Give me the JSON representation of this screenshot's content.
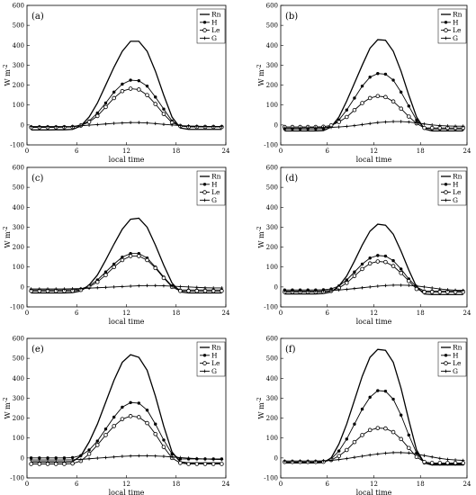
{
  "chart_data": [
    {
      "type": "line",
      "panel_label": "(a)",
      "xlabel": "local time",
      "ylabel": "W m",
      "ylabel_sup": "-2",
      "xlim": [
        0,
        24
      ],
      "ylim": [
        -100,
        600
      ],
      "xticks": [
        0,
        6,
        12,
        18,
        24
      ],
      "yticks": [
        -100,
        0,
        100,
        200,
        300,
        400,
        500,
        600
      ],
      "legend": "top-right",
      "x": [
        0.5,
        1.5,
        2.5,
        3.5,
        4.5,
        5.5,
        6.5,
        7.5,
        8.5,
        9.5,
        10.5,
        11.5,
        12.5,
        13.5,
        14.5,
        15.5,
        16.5,
        17.5,
        18.5,
        19.5,
        20.5,
        21.5,
        22.5,
        23.5
      ],
      "series": [
        {
          "name": "Rn",
          "marker": "none",
          "values": [
            -25,
            -25,
            -25,
            -24,
            -24,
            -22,
            -5,
            40,
            110,
            200,
            290,
            370,
            420,
            420,
            370,
            270,
            150,
            40,
            -15,
            -22,
            -22,
            -22,
            -22,
            -22
          ]
        },
        {
          "name": "H",
          "marker": "filled",
          "values": [
            -10,
            -10,
            -10,
            -10,
            -10,
            -9,
            0,
            20,
            60,
            110,
            165,
            205,
            225,
            222,
            195,
            140,
            80,
            20,
            -5,
            -8,
            -8,
            -8,
            -8,
            -8
          ]
        },
        {
          "name": "Le",
          "marker": "open",
          "values": [
            -12,
            -12,
            -12,
            -12,
            -11,
            -10,
            -3,
            15,
            45,
            90,
            135,
            170,
            182,
            178,
            150,
            105,
            55,
            12,
            -5,
            -10,
            -10,
            -10,
            -10,
            -10
          ]
        },
        {
          "name": "G",
          "marker": "plus",
          "values": [
            -8,
            -8,
            -8,
            -8,
            -8,
            -7,
            -4,
            -1,
            2,
            5,
            8,
            10,
            12,
            12,
            10,
            7,
            3,
            0,
            -3,
            -5,
            -6,
            -7,
            -7,
            -7
          ]
        }
      ]
    },
    {
      "type": "line",
      "panel_label": "(b)",
      "xlabel": "local time",
      "ylabel": "W m",
      "ylabel_sup": "-2",
      "xlim": [
        0,
        24
      ],
      "ylim": [
        -100,
        600
      ],
      "xticks": [
        0,
        6,
        12,
        18,
        24
      ],
      "yticks": [
        -100,
        0,
        100,
        200,
        300,
        400,
        500,
        600
      ],
      "legend": "top-right",
      "x": [
        0.5,
        1.5,
        2.5,
        3.5,
        4.5,
        5.5,
        6.5,
        7.5,
        8.5,
        9.5,
        10.5,
        11.5,
        12.5,
        13.5,
        14.5,
        15.5,
        16.5,
        17.5,
        18.5,
        19.5,
        20.5,
        21.5,
        22.5,
        23.5
      ],
      "series": [
        {
          "name": "Rn",
          "marker": "none",
          "values": [
            -30,
            -30,
            -30,
            -30,
            -30,
            -28,
            -10,
            40,
            120,
            210,
            300,
            385,
            428,
            425,
            370,
            270,
            150,
            40,
            -20,
            -30,
            -30,
            -30,
            -30,
            -30
          ]
        },
        {
          "name": "H",
          "marker": "filled",
          "values": [
            -20,
            -20,
            -20,
            -20,
            -20,
            -18,
            -5,
            25,
            75,
            135,
            195,
            240,
            258,
            255,
            225,
            165,
            95,
            25,
            -15,
            -20,
            -20,
            -20,
            -20,
            -20
          ]
        },
        {
          "name": "Le",
          "marker": "open",
          "values": [
            -10,
            -10,
            -10,
            -10,
            -10,
            -9,
            -2,
            15,
            40,
            75,
            110,
            135,
            145,
            140,
            118,
            82,
            42,
            8,
            -15,
            -15,
            -15,
            -15,
            -15,
            -15
          ]
        },
        {
          "name": "G",
          "marker": "plus",
          "values": [
            -15,
            -15,
            -15,
            -14,
            -14,
            -13,
            -12,
            -10,
            -7,
            -3,
            2,
            7,
            12,
            15,
            17,
            17,
            15,
            10,
            5,
            0,
            -3,
            -5,
            -6,
            -6
          ]
        }
      ]
    },
    {
      "type": "line",
      "panel_label": "(c)",
      "xlabel": "local time",
      "ylabel": "W m",
      "ylabel_sup": "-2",
      "xlim": [
        0,
        24
      ],
      "ylim": [
        -100,
        600
      ],
      "xticks": [
        0,
        6,
        12,
        18,
        24
      ],
      "yticks": [
        -100,
        0,
        100,
        200,
        300,
        400,
        500,
        600
      ],
      "legend": "top-right",
      "x": [
        0.5,
        1.5,
        2.5,
        3.5,
        4.5,
        5.5,
        6.5,
        7.5,
        8.5,
        9.5,
        10.5,
        11.5,
        12.5,
        13.5,
        14.5,
        15.5,
        16.5,
        17.5,
        18.5,
        19.5,
        20.5,
        21.5,
        22.5,
        23.5
      ],
      "series": [
        {
          "name": "Rn",
          "marker": "none",
          "values": [
            -30,
            -30,
            -30,
            -30,
            -30,
            -28,
            -20,
            10,
            60,
            135,
            215,
            290,
            340,
            345,
            300,
            210,
            110,
            20,
            -25,
            -30,
            -30,
            -30,
            -30,
            -30
          ]
        },
        {
          "name": "H",
          "marker": "filled",
          "values": [
            -15,
            -15,
            -15,
            -15,
            -15,
            -14,
            -10,
            5,
            35,
            75,
            115,
            150,
            168,
            168,
            145,
            100,
            50,
            5,
            -15,
            -15,
            -15,
            -15,
            -15,
            -15
          ]
        },
        {
          "name": "Le",
          "marker": "open",
          "values": [
            -20,
            -20,
            -20,
            -20,
            -20,
            -19,
            -15,
            0,
            25,
            60,
            100,
            135,
            155,
            155,
            135,
            95,
            45,
            0,
            -20,
            -20,
            -20,
            -20,
            -20,
            -20
          ]
        },
        {
          "name": "G",
          "marker": "plus",
          "values": [
            -10,
            -10,
            -10,
            -10,
            -10,
            -9,
            -8,
            -6,
            -4,
            -2,
            0,
            2,
            4,
            6,
            7,
            7,
            6,
            4,
            2,
            0,
            -2,
            -4,
            -5,
            -5
          ]
        }
      ]
    },
    {
      "type": "line",
      "panel_label": "(d)",
      "xlabel": "local time",
      "ylabel": "W m",
      "ylabel_sup": "-2",
      "xlim": [
        0,
        24
      ],
      "ylim": [
        -100,
        600
      ],
      "xticks": [
        0,
        6,
        12,
        18,
        24
      ],
      "yticks": [
        -100,
        0,
        100,
        200,
        300,
        400,
        500,
        600
      ],
      "legend": "top-right",
      "x": [
        0.5,
        1.5,
        2.5,
        3.5,
        4.5,
        5.5,
        6.5,
        7.5,
        8.5,
        9.5,
        10.5,
        11.5,
        12.5,
        13.5,
        14.5,
        15.5,
        16.5,
        17.5,
        18.5,
        19.5,
        20.5,
        21.5,
        22.5,
        23.5
      ],
      "series": [
        {
          "name": "Rn",
          "marker": "none",
          "values": [
            -35,
            -35,
            -35,
            -35,
            -35,
            -33,
            -25,
            5,
            55,
            130,
            210,
            280,
            315,
            310,
            265,
            180,
            85,
            0,
            -35,
            -38,
            -38,
            -38,
            -38,
            -38
          ]
        },
        {
          "name": "H",
          "marker": "filled",
          "values": [
            -15,
            -15,
            -15,
            -15,
            -15,
            -14,
            -10,
            5,
            35,
            75,
            115,
            145,
            158,
            155,
            132,
            90,
            40,
            0,
            -20,
            -20,
            -20,
            -20,
            -20,
            -20
          ]
        },
        {
          "name": "Le",
          "marker": "open",
          "values": [
            -25,
            -25,
            -25,
            -25,
            -25,
            -24,
            -20,
            -5,
            20,
            55,
            90,
            118,
            128,
            125,
            105,
            70,
            30,
            -10,
            -25,
            -25,
            -25,
            -25,
            -25,
            -25
          ]
        },
        {
          "name": "G",
          "marker": "plus",
          "values": [
            -20,
            -20,
            -20,
            -20,
            -20,
            -19,
            -18,
            -15,
            -12,
            -8,
            -4,
            0,
            4,
            7,
            9,
            9,
            8,
            5,
            0,
            -5,
            -10,
            -14,
            -16,
            -17
          ]
        }
      ]
    },
    {
      "type": "line",
      "panel_label": "(e)",
      "xlabel": "local time",
      "ylabel": "W m",
      "ylabel_sup": "-2",
      "xlim": [
        0,
        24
      ],
      "ylim": [
        -100,
        600
      ],
      "xticks": [
        0,
        6,
        12,
        18,
        24
      ],
      "yticks": [
        -100,
        0,
        100,
        200,
        300,
        400,
        500,
        600
      ],
      "legend": "top-right",
      "x": [
        0.5,
        1.5,
        2.5,
        3.5,
        4.5,
        5.5,
        6.5,
        7.5,
        8.5,
        9.5,
        10.5,
        11.5,
        12.5,
        13.5,
        14.5,
        15.5,
        16.5,
        17.5,
        18.5,
        19.5,
        20.5,
        21.5,
        22.5,
        23.5
      ],
      "series": [
        {
          "name": "Rn",
          "marker": "none",
          "values": [
            -20,
            -20,
            -20,
            -20,
            -20,
            -18,
            10,
            80,
            170,
            280,
            390,
            480,
            518,
            505,
            440,
            310,
            160,
            30,
            -20,
            -25,
            -25,
            -25,
            -25,
            -25
          ]
        },
        {
          "name": "H",
          "marker": "filled",
          "values": [
            0,
            0,
            0,
            0,
            0,
            2,
            12,
            40,
            85,
            145,
            205,
            255,
            278,
            275,
            240,
            170,
            90,
            20,
            -5,
            -5,
            -5,
            -5,
            -5,
            -5
          ]
        },
        {
          "name": "Le",
          "marker": "open",
          "values": [
            -30,
            -30,
            -30,
            -30,
            -30,
            -28,
            -15,
            20,
            65,
            115,
            160,
            195,
            210,
            205,
            175,
            120,
            55,
            0,
            -25,
            -30,
            -30,
            -30,
            -30,
            -30
          ]
        },
        {
          "name": "G",
          "marker": "plus",
          "values": [
            -10,
            -10,
            -10,
            -10,
            -10,
            -9,
            -7,
            -4,
            -1,
            2,
            5,
            8,
            10,
            11,
            11,
            10,
            8,
            5,
            2,
            -1,
            -3,
            -5,
            -7,
            -8
          ]
        }
      ]
    },
    {
      "type": "line",
      "panel_label": "(f)",
      "xlabel": "local time",
      "ylabel": "W m",
      "ylabel_sup": "-2",
      "xlim": [
        0,
        24
      ],
      "ylim": [
        -100,
        600
      ],
      "xticks": [
        0,
        6,
        12,
        18,
        24
      ],
      "yticks": [
        -100,
        0,
        100,
        200,
        300,
        400,
        500,
        600
      ],
      "legend": "top-right",
      "x": [
        0.5,
        1.5,
        2.5,
        3.5,
        4.5,
        5.5,
        6.5,
        7.5,
        8.5,
        9.5,
        10.5,
        11.5,
        12.5,
        13.5,
        14.5,
        15.5,
        16.5,
        17.5,
        18.5,
        19.5,
        20.5,
        21.5,
        22.5,
        23.5
      ],
      "series": [
        {
          "name": "Rn",
          "marker": "none",
          "values": [
            -25,
            -25,
            -25,
            -25,
            -25,
            -23,
            0,
            70,
            170,
            290,
            410,
            505,
            545,
            540,
            480,
            350,
            190,
            40,
            -25,
            -35,
            -35,
            -35,
            -35,
            -35
          ]
        },
        {
          "name": "H",
          "marker": "filled",
          "values": [
            -20,
            -20,
            -20,
            -20,
            -20,
            -18,
            -5,
            35,
            95,
            170,
            245,
            305,
            338,
            335,
            295,
            215,
            115,
            25,
            -25,
            -30,
            -30,
            -30,
            -30,
            -30
          ]
        },
        {
          "name": "Le",
          "marker": "open",
          "values": [
            -20,
            -20,
            -20,
            -20,
            -20,
            -19,
            -10,
            10,
            40,
            80,
            115,
            140,
            150,
            148,
            130,
            95,
            50,
            5,
            -20,
            -25,
            -25,
            -25,
            -25,
            -25
          ]
        },
        {
          "name": "G",
          "marker": "plus",
          "values": [
            -15,
            -15,
            -15,
            -15,
            -15,
            -14,
            -12,
            -8,
            -3,
            3,
            9,
            15,
            20,
            24,
            27,
            27,
            25,
            20,
            12,
            5,
            -2,
            -7,
            -10,
            -12
          ]
        }
      ]
    }
  ]
}
